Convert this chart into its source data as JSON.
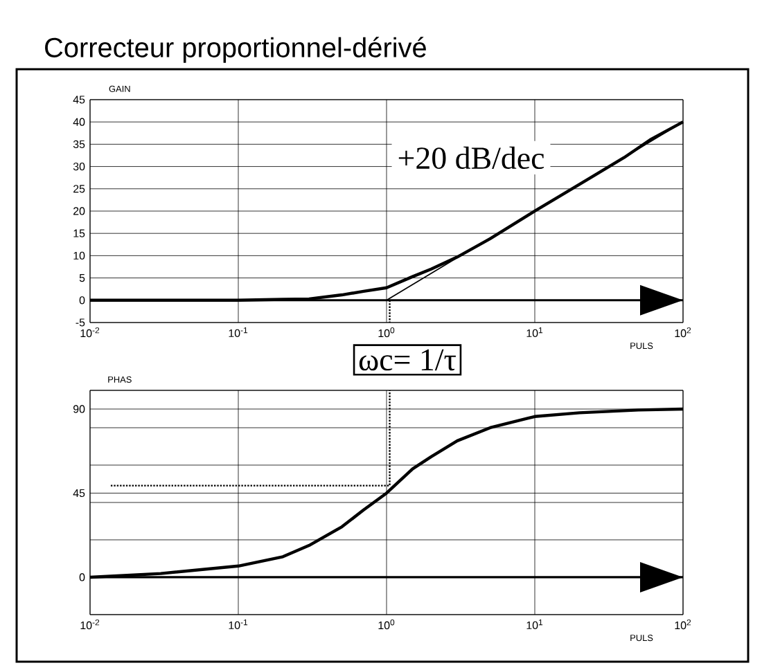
{
  "chart_data": [
    {
      "type": "line",
      "title": "Correcteur proportionnel-dérivé",
      "ylabel": "GAIN",
      "xlabel": "PULS",
      "log": "x",
      "grid": true,
      "xlim": [
        0.01,
        100
      ],
      "xticks": [
        {
          "value": 0.01,
          "label": "10$^{-2}$"
        },
        {
          "value": 0.1,
          "label": "10$^{-1}$"
        },
        {
          "value": 1,
          "label": "10$^{0}$"
        },
        {
          "value": 10,
          "label": "10$^{1}$"
        },
        {
          "value": 100,
          "label": "10$^{2}$"
        }
      ],
      "ylim": [
        -5,
        45
      ],
      "yticks": [
        -5,
        0,
        5,
        10,
        15,
        20,
        25,
        30,
        35,
        40,
        45
      ],
      "annotations": [
        "+20 dB/dec"
      ],
      "ref_lines": [
        {
          "axis": "y",
          "value": 0
        }
      ],
      "series": [
        {
          "color": "#000000",
          "x": [
            0.01,
            0.1,
            0.2,
            0.3,
            0.5,
            0.7,
            1,
            1.5,
            2,
            3,
            5,
            10,
            15,
            40,
            60,
            100
          ],
          "values": [
            0,
            0,
            0.2,
            0.3,
            1.2,
            2,
            2.8,
            5.3,
            7,
            9.7,
            13.8,
            20,
            23.5,
            32,
            36,
            40
          ]
        },
        {
          "color": "#000000",
          "x": [
            1,
            100
          ],
          "values": [
            0,
            40
          ]
        },
        {
          "color": "#000000",
          "line_style": "dotted",
          "x": [
            1.05,
            1.05
          ],
          "values": [
            0,
            -5
          ]
        }
      ]
    },
    {
      "type": "line",
      "ylabel": "PHAS",
      "xlabel": "PULS",
      "log": "x",
      "grid": true,
      "xlim": [
        0.01,
        100
      ],
      "xticks": [
        {
          "value": 0.01,
          "label": "10$^{-2}$"
        },
        {
          "value": 0.1,
          "label": "10$^{-1}$"
        },
        {
          "value": 1,
          "label": "10$^{0}$"
        },
        {
          "value": 10,
          "label": "10$^{1}$"
        },
        {
          "value": 100,
          "label": "10$^{2}$"
        }
      ],
      "ylim": [
        -20,
        100
      ],
      "yticks": [
        {
          "value": -20,
          "label": null
        },
        0,
        {
          "value": 20,
          "label": null
        },
        {
          "value": 40,
          "label": null
        },
        45,
        {
          "value": 60,
          "label": null
        },
        {
          "value": 80,
          "label": null
        },
        90,
        {
          "value": 100,
          "label": null
        }
      ],
      "annotations": [
        "ωc= 1/τ"
      ],
      "ref_lines": [
        {
          "axis": "y",
          "value": 0
        }
      ],
      "series": [
        {
          "color": "#000000",
          "x": [
            0.01,
            0.03,
            0.1,
            0.2,
            0.3,
            0.5,
            0.7,
            1,
            1.5,
            2,
            3,
            5,
            10,
            20,
            50,
            100
          ],
          "values": [
            0,
            2,
            6,
            11,
            17,
            27,
            36,
            45,
            58,
            64.5,
            73,
            80,
            86,
            88,
            89.5,
            90
          ]
        },
        {
          "color": "#000000",
          "line_style": "dotted",
          "x": [
            0.0138,
            1.05,
            1.05
          ],
          "values": [
            49,
            49,
            100
          ]
        }
      ]
    }
  ]
}
